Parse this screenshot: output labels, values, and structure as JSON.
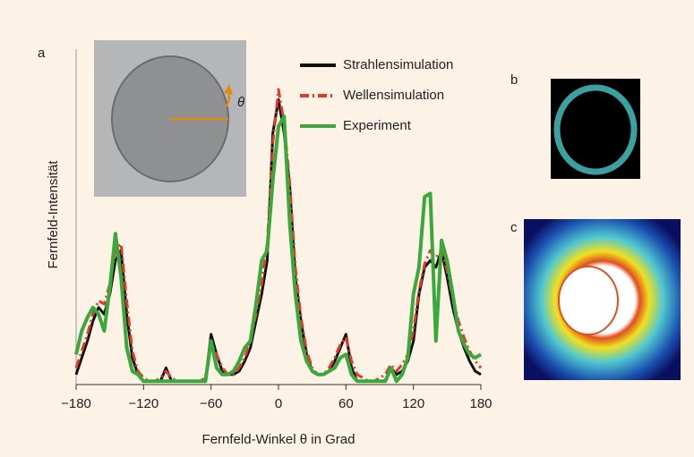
{
  "chart_data": {
    "type": "line",
    "panel_labels": [
      "a",
      "b",
      "c"
    ],
    "inset_label": "θ",
    "xlabel": "Fernfeld-Winkel θ in Grad",
    "ylabel": "Fernfeld-Intensität",
    "x": [
      -180,
      -175,
      -170,
      -165,
      -160,
      -155,
      -150,
      -145,
      -140,
      -135,
      -130,
      -125,
      -120,
      -115,
      -110,
      -105,
      -100,
      -95,
      -90,
      -85,
      -80,
      -75,
      -70,
      -65,
      -60,
      -55,
      -50,
      -45,
      -40,
      -35,
      -30,
      -25,
      -20,
      -15,
      -10,
      -5,
      0,
      5,
      10,
      15,
      20,
      25,
      30,
      35,
      40,
      45,
      50,
      55,
      60,
      65,
      70,
      75,
      80,
      85,
      90,
      95,
      100,
      105,
      110,
      115,
      120,
      125,
      130,
      135,
      140,
      145,
      150,
      155,
      160,
      165,
      170,
      175,
      180
    ],
    "xlim": [
      -180,
      180
    ],
    "xticks": [
      {
        "value": -180,
        "label": "−180"
      },
      {
        "value": -120,
        "label": "−120"
      },
      {
        "value": -60,
        "label": "−60"
      },
      0,
      60,
      120,
      180
    ],
    "ylim": [
      0,
      100
    ],
    "series": [
      {
        "name": "Strahlensimulation",
        "color": "#111111",
        "dash": "solid",
        "values": [
          3,
          8,
          13,
          19,
          23,
          21,
          27,
          37,
          40,
          21,
          8,
          3,
          1,
          1,
          1,
          1,
          5,
          1,
          1,
          1,
          1,
          1,
          1,
          1,
          15,
          9,
          4,
          3,
          3,
          4,
          7,
          11,
          19,
          27,
          37,
          75,
          85,
          75,
          59,
          32,
          19,
          9,
          4,
          3,
          3,
          4,
          7,
          11,
          15,
          5,
          1,
          1,
          1,
          1,
          1,
          1,
          5,
          3,
          4,
          7,
          13,
          27,
          35,
          37,
          35,
          40,
          32,
          23,
          16,
          11,
          7,
          4,
          3
        ]
      },
      {
        "name": "Wellensimulation",
        "color": "#e03a2a",
        "dash": "dashdot",
        "values": [
          5,
          10,
          15,
          21,
          25,
          24,
          30,
          40,
          42,
          25,
          10,
          4,
          2,
          1,
          1,
          2,
          4,
          2,
          1,
          1,
          1,
          1,
          1,
          2,
          12,
          9,
          5,
          3,
          3,
          5,
          8,
          13,
          21,
          30,
          42,
          72,
          88,
          78,
          60,
          35,
          20,
          10,
          5,
          3,
          3,
          5,
          8,
          12,
          14,
          7,
          3,
          2,
          1,
          1,
          2,
          3,
          6,
          4,
          6,
          9,
          16,
          28,
          36,
          40,
          38,
          40,
          34,
          26,
          19,
          14,
          10,
          7,
          5
        ]
      },
      {
        "name": "Experiment",
        "color": "#3aa93c",
        "dash": "solid",
        "values": [
          9,
          16,
          20,
          23,
          21,
          16,
          29,
          45,
          32,
          11,
          4,
          3,
          1,
          1,
          1,
          1,
          1,
          1,
          1,
          1,
          1,
          1,
          1,
          1,
          13,
          5,
          3,
          3,
          4,
          7,
          11,
          13,
          24,
          37,
          40,
          61,
          77,
          80,
          48,
          27,
          13,
          7,
          4,
          3,
          3,
          4,
          5,
          8,
          9,
          3,
          1,
          1,
          1,
          1,
          1,
          1,
          5,
          1,
          3,
          8,
          27,
          35,
          56,
          57,
          13,
          43,
          37,
          27,
          16,
          12,
          9,
          8,
          9
        ]
      }
    ]
  }
}
